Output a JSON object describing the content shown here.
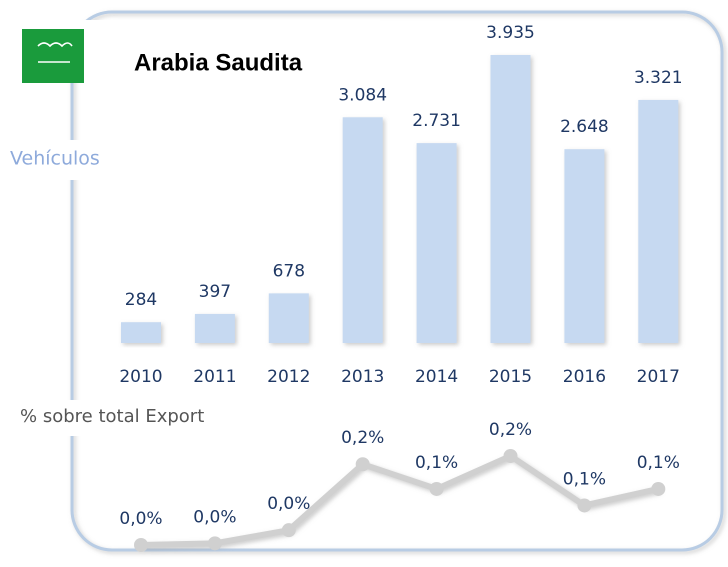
{
  "title": "Arabia Saudita",
  "chart_data": [
    {
      "type": "bar",
      "axis_label": "Vehículos",
      "categories": [
        "2010",
        "2011",
        "2012",
        "2013",
        "2014",
        "2015",
        "2016",
        "2017"
      ],
      "values": [
        284,
        397,
        678,
        3084,
        2731,
        3935,
        2648,
        3321
      ],
      "value_labels": [
        "284",
        "397",
        "678",
        "3.084",
        "2.731",
        "3.935",
        "2.648",
        "3.321"
      ],
      "color": "#c6d9f1"
    },
    {
      "type": "line",
      "axis_label": "% sobre total Export",
      "categories": [
        "2010",
        "2011",
        "2012",
        "2013",
        "2014",
        "2015",
        "2016",
        "2017"
      ],
      "values": [
        0.004,
        0.008,
        0.04,
        0.2,
        0.14,
        0.22,
        0.1,
        0.14
      ],
      "value_labels": [
        "0,0%",
        "0,0%",
        "0,0%",
        "0,2%",
        "0,1%",
        "0,2%",
        "0,1%",
        "0,1%"
      ],
      "color": "#d0d0d0"
    }
  ]
}
